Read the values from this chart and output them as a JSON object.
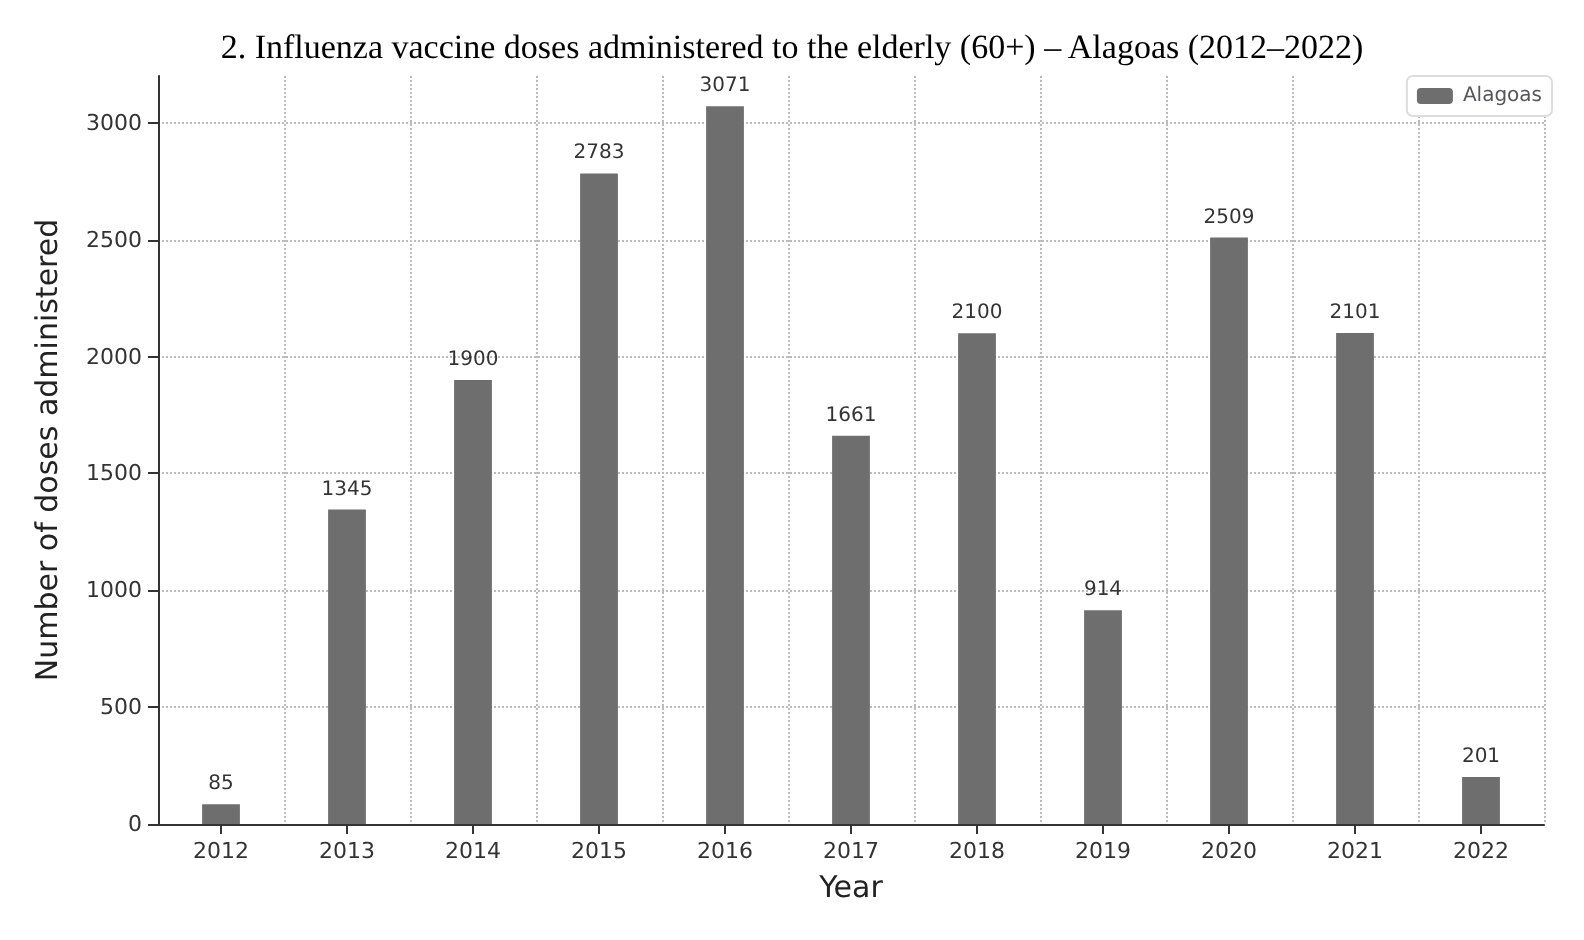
{
  "chart_data": {
    "type": "bar",
    "title": "2. Influenza vaccine doses administered to the elderly (60+) – Alagoas (2012–2022)",
    "xlabel": "Year",
    "ylabel": "Number of doses administered",
    "categories": [
      "2012",
      "2013",
      "2014",
      "2015",
      "2016",
      "2017",
      "2018",
      "2019",
      "2020",
      "2021",
      "2022"
    ],
    "series": [
      {
        "name": "Alagoas",
        "color": "#6e6e6e",
        "values": [
          85,
          1345,
          1900,
          2783,
          3071,
          1661,
          2100,
          914,
          2509,
          2101,
          201
        ]
      }
    ],
    "ylim": [
      0,
      3200
    ],
    "yticks": [
      0,
      500,
      1000,
      1500,
      2000,
      2500,
      3000
    ],
    "grid": true,
    "legend": "top right",
    "data_labels": true
  }
}
